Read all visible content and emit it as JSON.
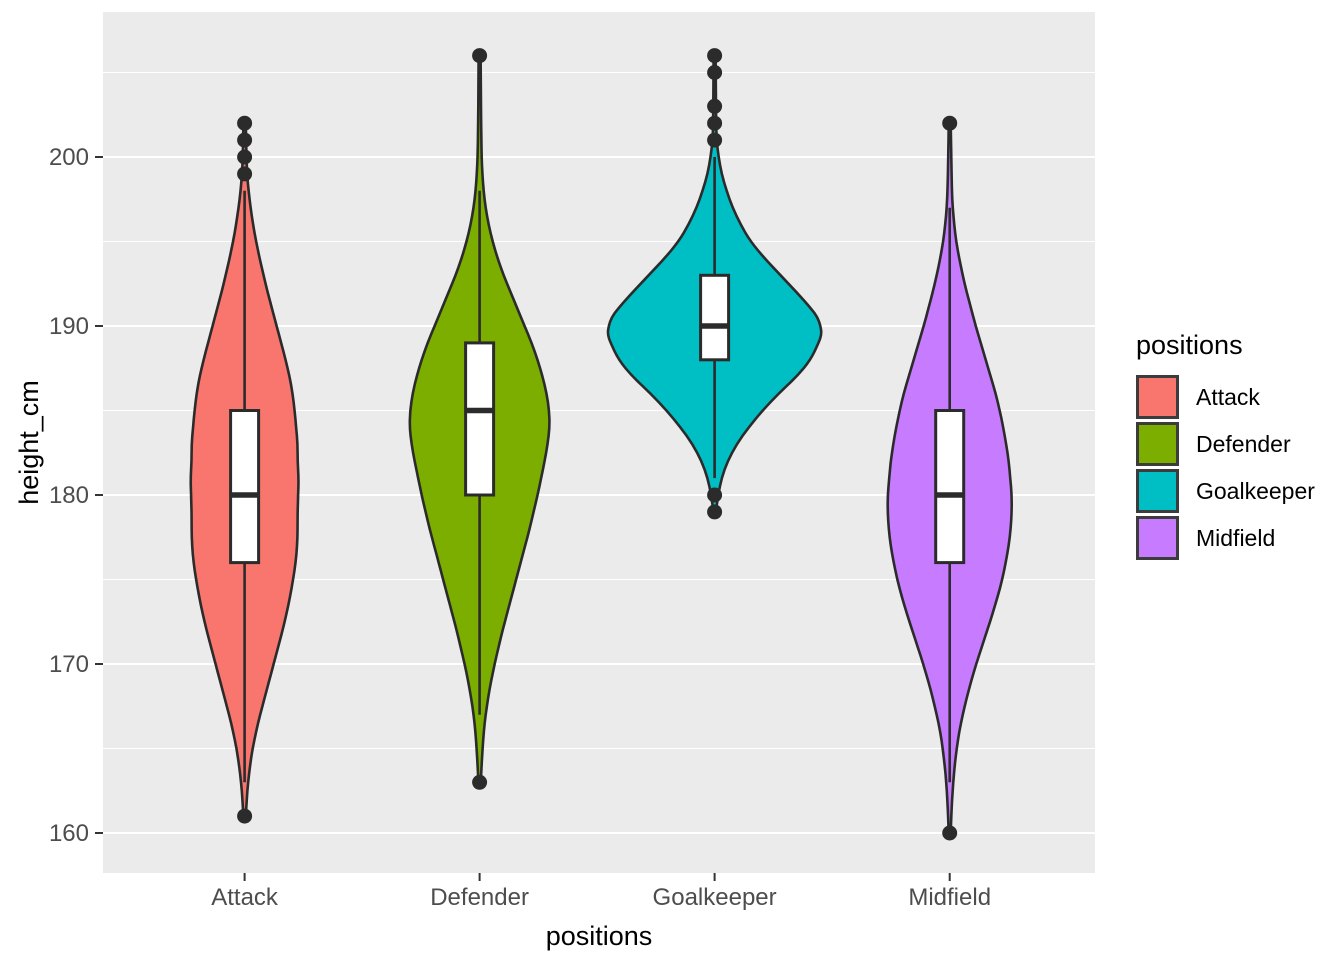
{
  "figure": {
    "background": "#ffffff",
    "panel_background": "#ebebeb",
    "grid_color": "#ffffff"
  },
  "legend": {
    "title": "positions",
    "items": [
      {
        "label": "Attack",
        "color": "#F8766D"
      },
      {
        "label": "Defender",
        "color": "#7CAE00"
      },
      {
        "label": "Goalkeeper",
        "color": "#00BFC4"
      },
      {
        "label": "Midfield",
        "color": "#C77CFF"
      }
    ]
  },
  "chart_data": {
    "type": "violin",
    "title": "",
    "xlabel": "positions",
    "ylabel": "height_cm",
    "categories": [
      "Attack",
      "Defender",
      "Goalkeeper",
      "Midfield"
    ],
    "y_ticks": [
      160,
      170,
      180,
      190,
      200
    ],
    "y_minor_ticks": [
      165,
      175,
      185,
      195,
      205
    ],
    "ylim": [
      157.5,
      208.5
    ],
    "grid": true,
    "legend_position": "right",
    "groups": [
      {
        "name": "Attack",
        "color": "#F8766D",
        "box": {
          "q1": 176,
          "median": 180,
          "q3": 185,
          "whisker_low": 163,
          "whisker_high": 198
        },
        "outliers_high": [
          199,
          200,
          201,
          202
        ],
        "outliers_low": [
          161
        ],
        "data_min": 161,
        "data_max": 202,
        "violin": [
          [
            202,
            1.2
          ],
          [
            200,
            1.8
          ],
          [
            199,
            2.5
          ],
          [
            198,
            4
          ],
          [
            197,
            6
          ],
          [
            196,
            8.5
          ],
          [
            195,
            11.5
          ],
          [
            194,
            15
          ],
          [
            193,
            19
          ],
          [
            192,
            23
          ],
          [
            191,
            27.5
          ],
          [
            190,
            32
          ],
          [
            189,
            36.5
          ],
          [
            188,
            41
          ],
          [
            187,
            45
          ],
          [
            186,
            48
          ],
          [
            185,
            50
          ],
          [
            184,
            51.5
          ],
          [
            183,
            53
          ],
          [
            182,
            53
          ],
          [
            181,
            54
          ],
          [
            180,
            53.5
          ],
          [
            179,
            53
          ],
          [
            178,
            53
          ],
          [
            177,
            52.5
          ],
          [
            176,
            51
          ],
          [
            175,
            48.5
          ],
          [
            174,
            45.5
          ],
          [
            173,
            42
          ],
          [
            172,
            38
          ],
          [
            171,
            33.5
          ],
          [
            170,
            29
          ],
          [
            169,
            24.5
          ],
          [
            168,
            20
          ],
          [
            167,
            15.5
          ],
          [
            166,
            11.5
          ],
          [
            165,
            8
          ],
          [
            164,
            5.5
          ],
          [
            163,
            3.5
          ],
          [
            162,
            2.2
          ],
          [
            161,
            1.2
          ]
        ]
      },
      {
        "name": "Defender",
        "color": "#7CAE00",
        "box": {
          "q1": 180,
          "median": 185,
          "q3": 189,
          "whisker_low": 167,
          "whisker_high": 198
        },
        "outliers_high": [
          206
        ],
        "outliers_low": [
          163
        ],
        "data_min": 163,
        "data_max": 206,
        "violin": [
          [
            206,
            1.0
          ],
          [
            204,
            1.2
          ],
          [
            202,
            1.5
          ],
          [
            200,
            2
          ],
          [
            199,
            2.8
          ],
          [
            198,
            4
          ],
          [
            197,
            6
          ],
          [
            196,
            9
          ],
          [
            195,
            13
          ],
          [
            194,
            18
          ],
          [
            193,
            24
          ],
          [
            192,
            31
          ],
          [
            191,
            38
          ],
          [
            190,
            45
          ],
          [
            189,
            52
          ],
          [
            188,
            58
          ],
          [
            187,
            63
          ],
          [
            186,
            67
          ],
          [
            185,
            69.5
          ],
          [
            184,
            70
          ],
          [
            183,
            68
          ],
          [
            182,
            65
          ],
          [
            181,
            61.5
          ],
          [
            180,
            58
          ],
          [
            179,
            54
          ],
          [
            178,
            50
          ],
          [
            177,
            45.5
          ],
          [
            176,
            41
          ],
          [
            175,
            36.5
          ],
          [
            174,
            32
          ],
          [
            173,
            27.5
          ],
          [
            172,
            23
          ],
          [
            171,
            19
          ],
          [
            170,
            15
          ],
          [
            169,
            11.5
          ],
          [
            168,
            8.5
          ],
          [
            167,
            6
          ],
          [
            166,
            4.2
          ],
          [
            165,
            3
          ],
          [
            164,
            2
          ],
          [
            163,
            1.2
          ]
        ]
      },
      {
        "name": "Goalkeeper",
        "color": "#00BFC4",
        "box": {
          "q1": 188,
          "median": 190,
          "q3": 193,
          "whisker_low": 181,
          "whisker_high": 200
        },
        "outliers_high": [
          201,
          202,
          203,
          205,
          206
        ],
        "outliers_low": [
          180,
          179
        ],
        "data_min": 179,
        "data_max": 206,
        "violin": [
          [
            206,
            1.0
          ],
          [
            204,
            1.2
          ],
          [
            202,
            1.5
          ],
          [
            201,
            2
          ],
          [
            200,
            4
          ],
          [
            199,
            7
          ],
          [
            198,
            12
          ],
          [
            197,
            18
          ],
          [
            196,
            26
          ],
          [
            195,
            36
          ],
          [
            194,
            50
          ],
          [
            193,
            66
          ],
          [
            192,
            82
          ],
          [
            191,
            97
          ],
          [
            190.5,
            103
          ],
          [
            190,
            106
          ],
          [
            189.5,
            107
          ],
          [
            189,
            104
          ],
          [
            188,
            96
          ],
          [
            187,
            82
          ],
          [
            186,
            64
          ],
          [
            185,
            48
          ],
          [
            184,
            34
          ],
          [
            183,
            22
          ],
          [
            182,
            13
          ],
          [
            181,
            7
          ],
          [
            180,
            3.5
          ],
          [
            179,
            1.2
          ]
        ]
      },
      {
        "name": "Midfield",
        "color": "#C77CFF",
        "box": {
          "q1": 176,
          "median": 180,
          "q3": 185,
          "whisker_low": 163,
          "whisker_high": 197
        },
        "outliers_high": [
          202
        ],
        "outliers_low": [
          160
        ],
        "data_min": 160,
        "data_max": 202,
        "violin": [
          [
            202,
            1.0
          ],
          [
            200,
            1.5
          ],
          [
            198,
            2.2
          ],
          [
            197,
            3
          ],
          [
            196,
            4.5
          ],
          [
            195,
            6.5
          ],
          [
            194,
            9.5
          ],
          [
            193,
            13
          ],
          [
            192,
            17
          ],
          [
            191,
            21.5
          ],
          [
            190,
            26
          ],
          [
            189,
            31
          ],
          [
            188,
            36
          ],
          [
            187,
            41
          ],
          [
            186,
            46
          ],
          [
            185,
            50
          ],
          [
            184,
            53.5
          ],
          [
            183,
            56.5
          ],
          [
            182,
            59
          ],
          [
            181,
            60.5
          ],
          [
            180,
            62
          ],
          [
            179,
            62
          ],
          [
            178,
            61
          ],
          [
            177,
            59
          ],
          [
            176,
            56
          ],
          [
            175,
            52.5
          ],
          [
            174,
            48
          ],
          [
            173,
            43
          ],
          [
            172,
            37.5
          ],
          [
            171,
            32
          ],
          [
            170,
            26.5
          ],
          [
            169,
            21.5
          ],
          [
            168,
            17
          ],
          [
            167,
            13
          ],
          [
            166,
            9.5
          ],
          [
            165,
            7
          ],
          [
            164,
            5
          ],
          [
            163,
            3.5
          ],
          [
            162,
            2.4
          ],
          [
            161,
            1.6
          ],
          [
            160,
            1.0
          ]
        ]
      }
    ]
  }
}
